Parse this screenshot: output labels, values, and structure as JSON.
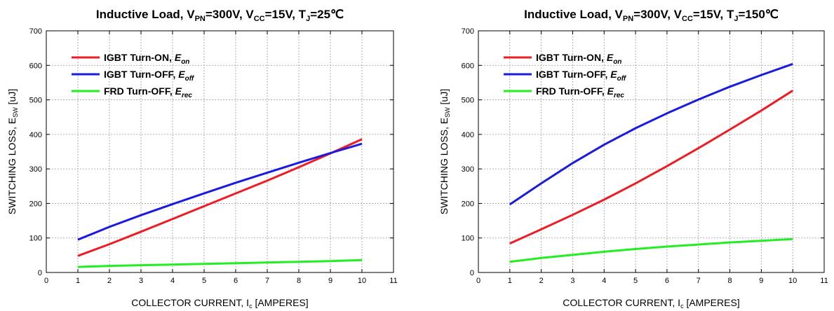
{
  "chart_data": [
    {
      "type": "line",
      "title": {
        "prefix": "Inductive Load, V",
        "vpn_sub": "PN",
        "vpn_val": "=300V, V",
        "vcc_sub": "CC",
        "vcc_val": "=15V, T",
        "tj_sub": "J",
        "tj_val": "=25℃"
      },
      "xlabel": {
        "main": "COLLECTOR CURRENT, I",
        "sub": "c",
        "tail": " [AMPERES]"
      },
      "ylabel": {
        "main": "SWITCHING LOSS, E",
        "sub": "SW",
        "tail": "  [uJ]"
      },
      "xlim": [
        0,
        11
      ],
      "ylim": [
        0,
        700
      ],
      "x_ticks": [
        "0",
        "1",
        "2",
        "3",
        "4",
        "5",
        "6",
        "7",
        "8",
        "9",
        "10",
        "11"
      ],
      "y_ticks": [
        "0",
        "100",
        "200",
        "300",
        "400",
        "500",
        "600",
        "700"
      ],
      "grid": true,
      "legend_position": "top-left",
      "x": [
        1,
        2,
        3,
        4,
        5,
        6,
        7,
        8,
        9,
        10
      ],
      "series": [
        {
          "name": "IGBT Turn-ON, ",
          "name_italic": "E",
          "name_sub": "on",
          "color": "#ee1c25",
          "values": [
            48,
            82,
            118,
            155,
            192,
            229,
            266,
            305,
            345,
            386
          ]
        },
        {
          "name": "IGBT Turn-OFF, ",
          "name_italic": "E",
          "name_sub": "off",
          "color": "#1a1ae0",
          "values": [
            95,
            132,
            166,
            198,
            229,
            260,
            289,
            318,
            346,
            373
          ]
        },
        {
          "name": "FRD Turn-OFF, ",
          "name_italic": "E",
          "name_sub": "rec",
          "color": "#22ee22",
          "values": [
            16,
            19,
            21,
            23,
            25,
            27,
            29,
            31,
            33,
            36
          ]
        }
      ]
    },
    {
      "type": "line",
      "title": {
        "prefix": "Inductive Load, V",
        "vpn_sub": "PN",
        "vpn_val": "=300V, V",
        "vcc_sub": "CC",
        "vcc_val": "=15V, T",
        "tj_sub": "J",
        "tj_val": "=150℃"
      },
      "xlabel": {
        "main": "COLLECTOR CURRENT, I",
        "sub": "c",
        "tail": " [AMPERES]"
      },
      "ylabel": {
        "main": "SWITCHING LOSS, E",
        "sub": "SW",
        "tail": "  [uJ]"
      },
      "xlim": [
        0,
        11
      ],
      "ylim": [
        0,
        700
      ],
      "x_ticks": [
        "0",
        "1",
        "2",
        "3",
        "4",
        "5",
        "6",
        "7",
        "8",
        "9",
        "10",
        "11"
      ],
      "y_ticks": [
        "0",
        "100",
        "200",
        "300",
        "400",
        "500",
        "600",
        "700"
      ],
      "grid": true,
      "legend_position": "top-left",
      "x": [
        1,
        2,
        3,
        4,
        5,
        6,
        7,
        8,
        9,
        10
      ],
      "series": [
        {
          "name": "IGBT Turn-ON, ",
          "name_italic": "E",
          "name_sub": "on",
          "color": "#ee1c25",
          "values": [
            84,
            125,
            167,
            211,
            258,
            308,
            360,
            414,
            469,
            527
          ]
        },
        {
          "name": "IGBT Turn-OFF, ",
          "name_italic": "E",
          "name_sub": "off",
          "color": "#1a1ae0",
          "values": [
            197,
            258,
            317,
            370,
            418,
            461,
            501,
            538,
            572,
            604
          ]
        },
        {
          "name": "FRD Turn-OFF, ",
          "name_italic": "E",
          "name_sub": "rec",
          "color": "#22ee22",
          "values": [
            31,
            42,
            51,
            60,
            68,
            75,
            81,
            87,
            92,
            97
          ]
        }
      ]
    }
  ]
}
